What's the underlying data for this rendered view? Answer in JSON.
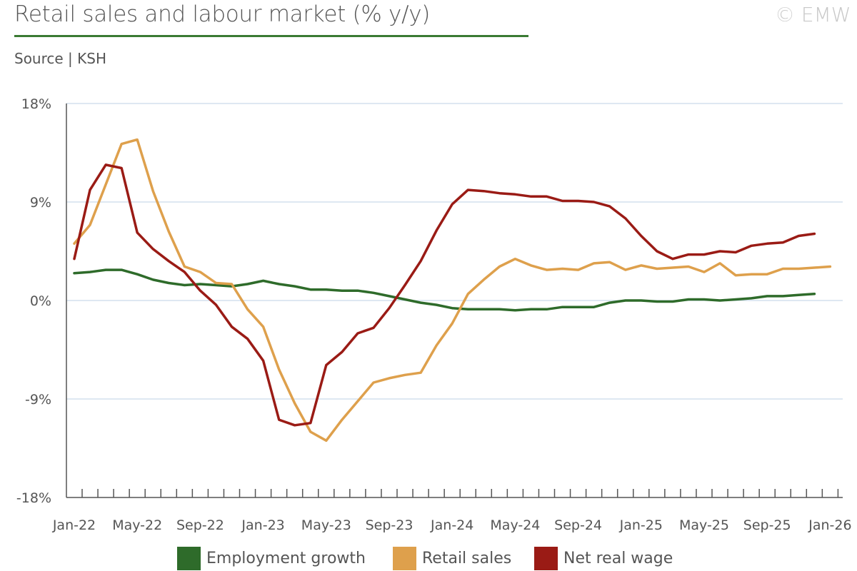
{
  "header": {
    "title": "Retail sales and labour market (% y/y)",
    "watermark": "© EMW",
    "source": "Source | KSH"
  },
  "chart_data": {
    "type": "line",
    "title": "Retail sales and labour market (% y/y)",
    "ylim": [
      -18,
      18
    ],
    "yticks": [
      "18%",
      "9%",
      "0%",
      "-9%",
      "-18%"
    ],
    "ytick_values": [
      18,
      9,
      0,
      -9,
      -18
    ],
    "xtick_labels": [
      "Jan-22",
      "May-22",
      "Sep-22",
      "Jan-23",
      "May-23",
      "Sep-23",
      "Jan-24",
      "May-24",
      "Sep-24",
      "Jan-25",
      "May-25",
      "Sep-25",
      "Jan-26"
    ],
    "x_start": "Jan-22",
    "grid": true,
    "legend_position": "bottom",
    "series": [
      {
        "name": "Employment growth",
        "color": "#2e6b2a",
        "values": [
          2.5,
          2.6,
          2.8,
          2.8,
          2.4,
          1.9,
          1.6,
          1.4,
          1.5,
          1.4,
          1.3,
          1.5,
          1.8,
          1.5,
          1.3,
          1.0,
          1.0,
          0.9,
          0.9,
          0.7,
          0.4,
          0.1,
          -0.2,
          -0.4,
          -0.7,
          -0.8,
          -0.8,
          -0.8,
          -0.9,
          -0.8,
          -0.8,
          -0.6,
          -0.6,
          -0.6,
          -0.2,
          0.0,
          0.0,
          -0.1,
          -0.1,
          0.1,
          0.1,
          0.0,
          0.1,
          0.2,
          0.4,
          0.4,
          0.5,
          0.6
        ]
      },
      {
        "name": "Retail sales",
        "color": "#dea04c",
        "values": [
          5.2,
          6.9,
          10.6,
          14.3,
          14.7,
          10.0,
          6.3,
          3.1,
          2.6,
          1.6,
          1.5,
          -0.8,
          -2.4,
          -6.3,
          -9.4,
          -12.0,
          -12.8,
          -10.9,
          -9.2,
          -7.5,
          -7.1,
          -6.8,
          -6.6,
          -4.1,
          -2.1,
          0.6,
          1.9,
          3.1,
          3.8,
          3.2,
          2.8,
          2.9,
          2.8,
          3.4,
          3.5,
          2.8,
          3.2,
          2.9,
          3.0,
          3.1,
          2.6,
          3.4,
          2.3,
          2.4,
          2.4,
          2.9,
          2.9,
          3.0,
          3.1
        ]
      },
      {
        "name": "Net real wage",
        "color": "#9a1b15",
        "values": [
          3.8,
          10.1,
          12.4,
          12.1,
          6.2,
          4.7,
          3.6,
          2.6,
          0.9,
          -0.4,
          -2.4,
          -3.5,
          -5.5,
          -10.9,
          -11.4,
          -11.2,
          -5.9,
          -4.7,
          -3.0,
          -2.5,
          -0.7,
          1.4,
          3.6,
          6.4,
          8.8,
          10.1,
          10.0,
          9.8,
          9.7,
          9.5,
          9.5,
          9.1,
          9.1,
          9.0,
          8.6,
          7.5,
          5.9,
          4.5,
          3.8,
          4.2,
          4.2,
          4.5,
          4.4,
          5.0,
          5.2,
          5.3,
          5.9,
          6.1
        ]
      }
    ]
  },
  "legend": [
    {
      "label": "Employment growth",
      "color": "#2e6b2a"
    },
    {
      "label": "Retail sales",
      "color": "#dea04c"
    },
    {
      "label": "Net real wage",
      "color": "#9a1b15"
    }
  ]
}
